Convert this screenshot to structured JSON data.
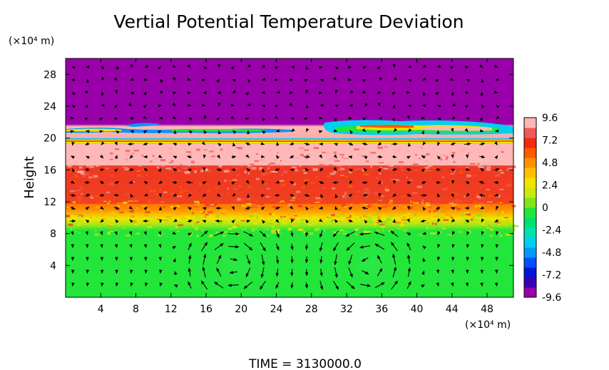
{
  "chart_data": {
    "type": "heatmap",
    "title": "Vertial Potential Temperature Deviation",
    "ylabel": "Height",
    "y_unit_label": "(×10⁴ m)",
    "x_unit_label": "(×10⁴ m)",
    "footer": "TIME = 3130000.0",
    "xlim": [
      0,
      51
    ],
    "ylim": [
      0,
      30
    ],
    "x_ticks": [
      "4",
      "8",
      "12",
      "16",
      "20",
      "24",
      "28",
      "32",
      "36",
      "40",
      "44",
      "48"
    ],
    "y_ticks": [
      "4",
      "8",
      "12",
      "16",
      "20",
      "24",
      "28"
    ],
    "x_tick_values": [
      4,
      8,
      12,
      16,
      20,
      24,
      28,
      32,
      36,
      40,
      44,
      48
    ],
    "y_tick_values": [
      4,
      8,
      12,
      16,
      20,
      24,
      28
    ],
    "colorbar": {
      "range": [
        -9.6,
        9.6
      ],
      "labels": [
        "9.6",
        "7.2",
        "4.8",
        "2.4",
        "0",
        "-2.4",
        "-4.8",
        "-7.2",
        "-9.6"
      ],
      "label_values": [
        9.6,
        7.2,
        4.8,
        2.4,
        0,
        -2.4,
        -4.8,
        -7.2,
        -9.6
      ],
      "colors": [
        "#9900aa",
        "#3a00b5",
        "#0015d8",
        "#0050ff",
        "#0098ff",
        "#00d0f0",
        "#00e2b0",
        "#00e070",
        "#22e63a",
        "#7fe61e",
        "#c8ea12",
        "#f2e300",
        "#ffc000",
        "#ff9000",
        "#ff5a00",
        "#f22a14",
        "#ee5a5a",
        "#ffb4b4"
      ]
    },
    "field_layers": [
      {
        "y_range": [
          0,
          9
        ],
        "value": 0.3
      },
      {
        "y_range": [
          9,
          10
        ],
        "value": 3.5
      },
      {
        "y_range": [
          10,
          11.5
        ],
        "value": 5.5
      },
      {
        "y_range": [
          11.5,
          15.5
        ],
        "value": 7.8
      },
      {
        "y_range": [
          15.5,
          19.3
        ],
        "value": 9.2
      },
      {
        "y_range": [
          19.3,
          30
        ],
        "value": -9.6
      }
    ],
    "vortex_centers": [
      {
        "x": 19,
        "y": 4,
        "rotation": "clockwise"
      },
      {
        "x": 34.5,
        "y": 4,
        "rotation": "counterclockwise"
      }
    ]
  }
}
